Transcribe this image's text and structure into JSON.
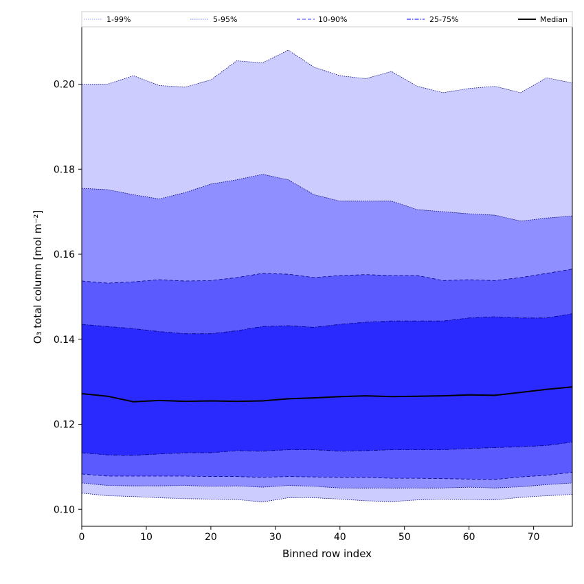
{
  "chart_data": {
    "type": "area",
    "xlabel": "Binned row index",
    "ylabel": "O₃ total column [mol m⁻²]",
    "xlim": [
      0,
      76
    ],
    "ylim": [
      0.096,
      0.2135
    ],
    "xticks": [
      0,
      10,
      20,
      30,
      40,
      50,
      60,
      70
    ],
    "xtick_labels": [
      "0",
      "10",
      "20",
      "30",
      "40",
      "50",
      "60",
      "70"
    ],
    "yticks": [
      0.1,
      0.12,
      0.14,
      0.16,
      0.18,
      0.2
    ],
    "ytick_labels": [
      "0.10",
      "0.12",
      "0.14",
      "0.16",
      "0.18",
      "0.20"
    ],
    "grid": false,
    "legend": {
      "placement": "top",
      "entries": [
        {
          "label": "1-99%",
          "color": "#ccccff",
          "style": "dotted"
        },
        {
          "label": "5-95%",
          "color": "#8f8fff",
          "style": "dotted"
        },
        {
          "label": "10-90%",
          "color": "#5a5aff",
          "style": "dashed"
        },
        {
          "label": "25-75%",
          "color": "#2a2aff",
          "style": "dashdot"
        },
        {
          "label": "Median",
          "color": "#000000",
          "style": "solid"
        }
      ]
    },
    "x": [
      0,
      4,
      8,
      12,
      16,
      20,
      24,
      28,
      32,
      36,
      40,
      44,
      48,
      52,
      56,
      60,
      64,
      68,
      72,
      76
    ],
    "bands": [
      {
        "name": "1-99%",
        "color": "#ccccff",
        "lower": [
          0.1038,
          0.1032,
          0.103,
          0.1027,
          0.1025,
          0.1024,
          0.1023,
          0.1017,
          0.1027,
          0.1027,
          0.1024,
          0.102,
          0.1018,
          0.1022,
          0.1024,
          0.1023,
          0.1022,
          0.1028,
          0.1032,
          0.1035
        ],
        "upper": [
          0.2,
          0.2,
          0.202,
          0.1997,
          0.1993,
          0.201,
          0.2055,
          0.205,
          0.208,
          0.204,
          0.202,
          0.2013,
          0.203,
          0.1995,
          0.198,
          0.199,
          0.1995,
          0.198,
          0.2015,
          0.2003
        ]
      },
      {
        "name": "5-95%",
        "color": "#8f8fff",
        "lower": [
          0.1062,
          0.1056,
          0.1055,
          0.1055,
          0.1056,
          0.1054,
          0.1055,
          0.1052,
          0.1056,
          0.1054,
          0.105,
          0.105,
          0.105,
          0.105,
          0.105,
          0.1052,
          0.105,
          0.1053,
          0.1058,
          0.1062
        ],
        "upper": [
          0.1755,
          0.1752,
          0.174,
          0.173,
          0.1745,
          0.1765,
          0.1775,
          0.1788,
          0.1775,
          0.174,
          0.1725,
          0.1725,
          0.1725,
          0.1705,
          0.17,
          0.1695,
          0.1692,
          0.1678,
          0.1685,
          0.169
        ]
      },
      {
        "name": "10-90%",
        "color": "#5a5aff",
        "lower": [
          0.1083,
          0.1078,
          0.1078,
          0.1078,
          0.1078,
          0.1077,
          0.1077,
          0.1075,
          0.1077,
          0.1076,
          0.1075,
          0.1075,
          0.1073,
          0.1073,
          0.1072,
          0.1071,
          0.107,
          0.1076,
          0.108,
          0.1087
        ],
        "upper": [
          0.1537,
          0.1532,
          0.1535,
          0.154,
          0.1537,
          0.1538,
          0.1545,
          0.1555,
          0.1553,
          0.1545,
          0.155,
          0.1552,
          0.155,
          0.155,
          0.1538,
          0.154,
          0.1538,
          0.1545,
          0.1555,
          0.1565
        ]
      },
      {
        "name": "25-75%",
        "color": "#2a2aff",
        "lower": [
          0.1133,
          0.1128,
          0.1127,
          0.113,
          0.1133,
          0.1133,
          0.1138,
          0.1137,
          0.114,
          0.114,
          0.1137,
          0.1138,
          0.114,
          0.114,
          0.114,
          0.1143,
          0.1145,
          0.1147,
          0.115,
          0.1158
        ],
        "upper": [
          0.1435,
          0.143,
          0.1425,
          0.1418,
          0.1413,
          0.1413,
          0.142,
          0.143,
          0.1432,
          0.1428,
          0.1435,
          0.144,
          0.1443,
          0.1443,
          0.1443,
          0.145,
          0.1453,
          0.145,
          0.145,
          0.146
        ]
      }
    ],
    "series": [
      {
        "name": "Median",
        "color": "#000000",
        "values": [
          0.1272,
          0.1266,
          0.1253,
          0.1256,
          0.1254,
          0.1255,
          0.1254,
          0.1255,
          0.126,
          0.1262,
          0.1265,
          0.1267,
          0.1265,
          0.1266,
          0.1267,
          0.1269,
          0.1268,
          0.1275,
          0.1282,
          0.1288
        ]
      }
    ]
  }
}
